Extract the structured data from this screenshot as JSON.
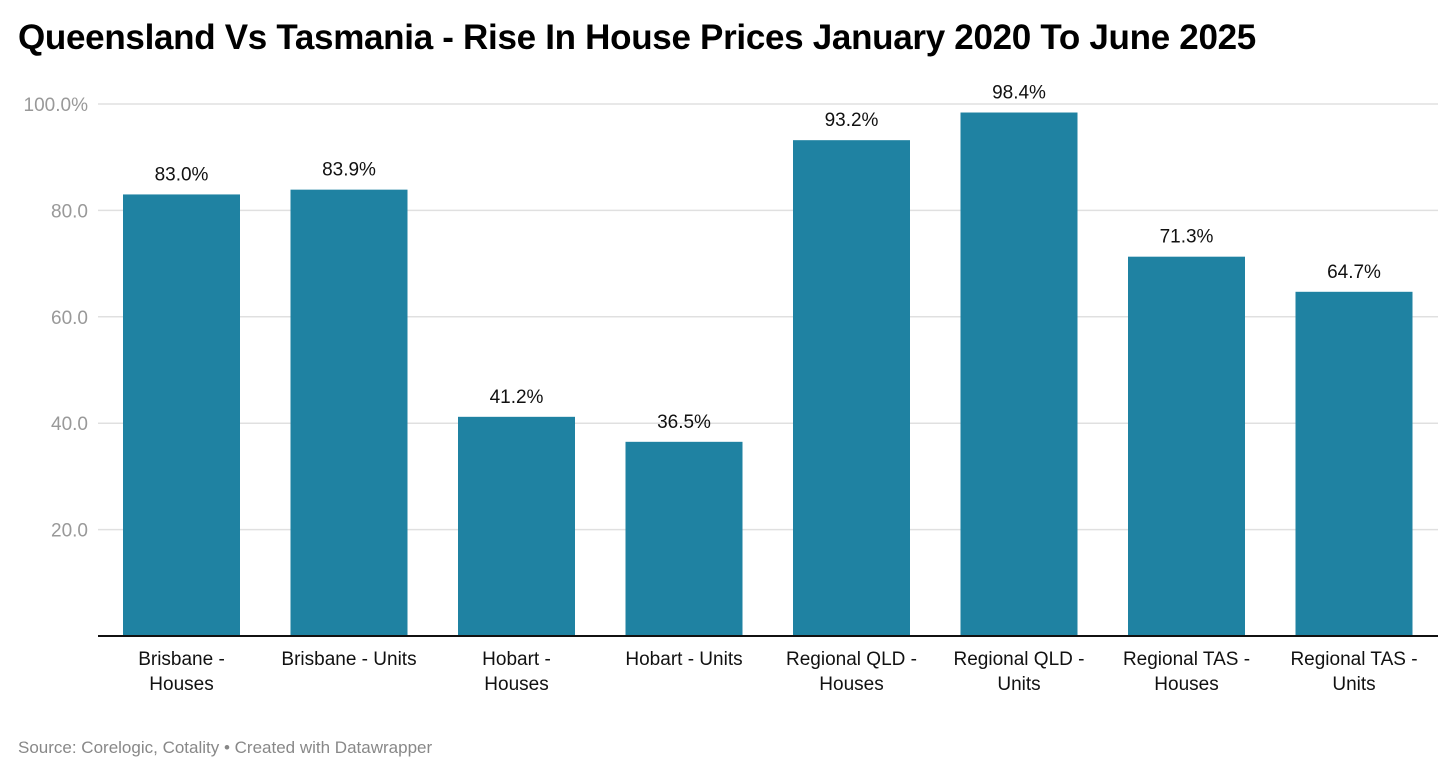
{
  "chart_data": {
    "type": "bar",
    "title": "Queensland Vs Tasmania - Rise In House Prices January 2020 To June 2025",
    "categories": [
      [
        "Brisbane -",
        "Houses"
      ],
      [
        "Brisbane - Units"
      ],
      [
        "Hobart -",
        "Houses"
      ],
      [
        "Hobart - Units"
      ],
      [
        "Regional QLD -",
        "Houses"
      ],
      [
        "Regional QLD -",
        "Units"
      ],
      [
        "Regional TAS -",
        "Houses"
      ],
      [
        "Regional TAS -",
        "Units"
      ]
    ],
    "values": [
      83.0,
      83.9,
      41.2,
      36.5,
      93.2,
      98.4,
      71.3,
      64.7
    ],
    "value_labels": [
      "83.0%",
      "83.9%",
      "41.2%",
      "36.5%",
      "93.2%",
      "98.4%",
      "71.3%",
      "64.7%"
    ],
    "yticks": [
      20,
      40,
      60,
      80,
      100
    ],
    "ytick_labels": [
      "20.0",
      "40.0",
      "60.0",
      "80.0",
      "100.0%"
    ],
    "ylim": [
      0,
      100
    ],
    "xlabel": "",
    "ylabel": "",
    "grid": true,
    "bar_color": "#1f82a2"
  },
  "footer": {
    "source": "Source: Corelogic, Cotality • Created with Datawrapper"
  }
}
